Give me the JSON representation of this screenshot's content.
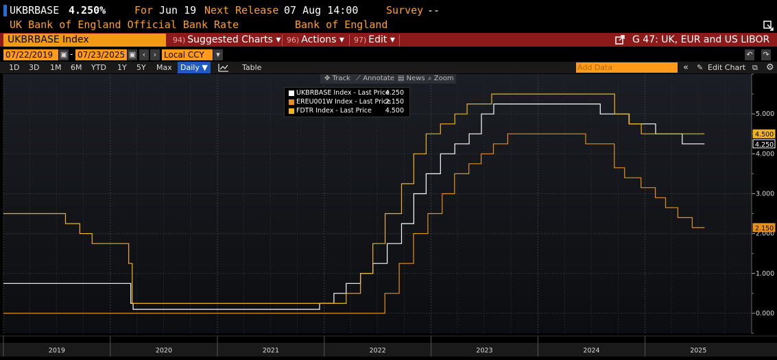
{
  "header": {
    "ticker": "UKBRBASE",
    "last": "4.250%",
    "for_label": "For",
    "for_date": "Jun 19",
    "next_release_label": "Next Release",
    "next_release": "07 Aug 14:00",
    "survey_label": "Survey",
    "survey_value": "--",
    "description": "UK Bank of England Official Bank Rate",
    "source": "Bank of England"
  },
  "titlebar": {
    "security": "UKBRBASE Index",
    "menus": [
      {
        "num": "94)",
        "label": "Suggested Charts ▾"
      },
      {
        "num": "96)",
        "label": "Actions ▾"
      },
      {
        "num": "97)",
        "label": "Edit ▾"
      }
    ],
    "chart_name": "G 47: UK, EUR and US LIBOR"
  },
  "dates": {
    "start": "07/22/2019",
    "end": "07/23/2025",
    "currency": "Local CCY"
  },
  "ranges": [
    "1D",
    "3D",
    "1M",
    "6M",
    "YTD",
    "1Y",
    "5Y",
    "Max"
  ],
  "frequency": "Daily ▼",
  "table_label": "Table",
  "add_data_placeholder": "Add Data",
  "edit_chart_label": "Edit Chart",
  "toolbar": {
    "track": "Track",
    "annotate": "Annotate",
    "news": "News",
    "zoom": "Zoom"
  },
  "colors": {
    "ukbr": "#ffffff",
    "ereu": "#e8901e",
    "fdtr": "#f0b41e",
    "background": "#000000",
    "titlebar": "#8c1a1a",
    "accent": "#ff9a1a"
  },
  "chart_data": {
    "type": "line",
    "xlim": [
      "2019-01-01",
      "2025-12-31"
    ],
    "ylim": [
      -0.5,
      6.0
    ],
    "y_ticks": [
      "0.000",
      "1.000",
      "2.000",
      "3.000",
      "4.000",
      "5.000"
    ],
    "x_ticks": [
      "2019",
      "2020",
      "2021",
      "2022",
      "2023",
      "2024",
      "2025"
    ],
    "series": [
      {
        "name": "UKBRBASE Index - Last Price",
        "last": "4.250",
        "color": "#ffffff",
        "points": [
          [
            "2019-01-01",
            0.75
          ],
          [
            "2020-03-11",
            0.25
          ],
          [
            "2020-03-19",
            0.1
          ],
          [
            "2021-12-16",
            0.25
          ],
          [
            "2022-02-03",
            0.5
          ],
          [
            "2022-03-17",
            0.75
          ],
          [
            "2022-05-05",
            1.0
          ],
          [
            "2022-06-16",
            1.25
          ],
          [
            "2022-08-04",
            1.75
          ],
          [
            "2022-09-22",
            2.25
          ],
          [
            "2022-11-03",
            3.0
          ],
          [
            "2022-12-15",
            3.5
          ],
          [
            "2023-02-02",
            4.0
          ],
          [
            "2023-03-23",
            4.25
          ],
          [
            "2023-05-11",
            4.5
          ],
          [
            "2023-06-22",
            5.0
          ],
          [
            "2023-08-03",
            5.25
          ],
          [
            "2024-08-01",
            5.0
          ],
          [
            "2024-11-07",
            4.75
          ],
          [
            "2025-02-06",
            4.5
          ],
          [
            "2025-05-08",
            4.25
          ],
          [
            "2025-07-23",
            4.25
          ]
        ]
      },
      {
        "name": "EREU001W Index - Last Price",
        "last": "2.150",
        "color": "#e8901e",
        "points": [
          [
            "2019-01-01",
            0.0
          ],
          [
            "2022-07-27",
            0.5
          ],
          [
            "2022-09-14",
            1.25
          ],
          [
            "2022-11-02",
            2.0
          ],
          [
            "2022-12-21",
            2.5
          ],
          [
            "2023-02-08",
            3.0
          ],
          [
            "2023-03-22",
            3.5
          ],
          [
            "2023-05-10",
            3.75
          ],
          [
            "2023-06-21",
            4.0
          ],
          [
            "2023-08-02",
            4.25
          ],
          [
            "2023-09-20",
            4.5
          ],
          [
            "2024-06-12",
            4.25
          ],
          [
            "2024-09-18",
            3.65
          ],
          [
            "2024-10-23",
            3.4
          ],
          [
            "2024-12-18",
            3.15
          ],
          [
            "2025-02-05",
            2.9
          ],
          [
            "2025-03-12",
            2.65
          ],
          [
            "2025-04-23",
            2.4
          ],
          [
            "2025-06-11",
            2.15
          ],
          [
            "2025-07-23",
            2.15
          ]
        ]
      },
      {
        "name": "FDTR Index - Last Price",
        "last": "4.500",
        "color": "#f0b41e",
        "points": [
          [
            "2019-01-01",
            2.5
          ],
          [
            "2019-08-01",
            2.25
          ],
          [
            "2019-09-19",
            2.0
          ],
          [
            "2019-10-31",
            1.75
          ],
          [
            "2020-03-04",
            1.25
          ],
          [
            "2020-03-16",
            0.25
          ],
          [
            "2022-03-17",
            0.5
          ],
          [
            "2022-05-05",
            1.0
          ],
          [
            "2022-06-16",
            1.75
          ],
          [
            "2022-07-28",
            2.5
          ],
          [
            "2022-09-22",
            3.25
          ],
          [
            "2022-11-03",
            4.0
          ],
          [
            "2022-12-15",
            4.5
          ],
          [
            "2023-02-02",
            4.75
          ],
          [
            "2023-03-23",
            5.0
          ],
          [
            "2023-05-04",
            5.25
          ],
          [
            "2023-07-27",
            5.5
          ],
          [
            "2024-09-19",
            5.0
          ],
          [
            "2024-11-08",
            4.75
          ],
          [
            "2024-12-19",
            4.5
          ],
          [
            "2025-07-23",
            4.5
          ]
        ]
      }
    ]
  }
}
